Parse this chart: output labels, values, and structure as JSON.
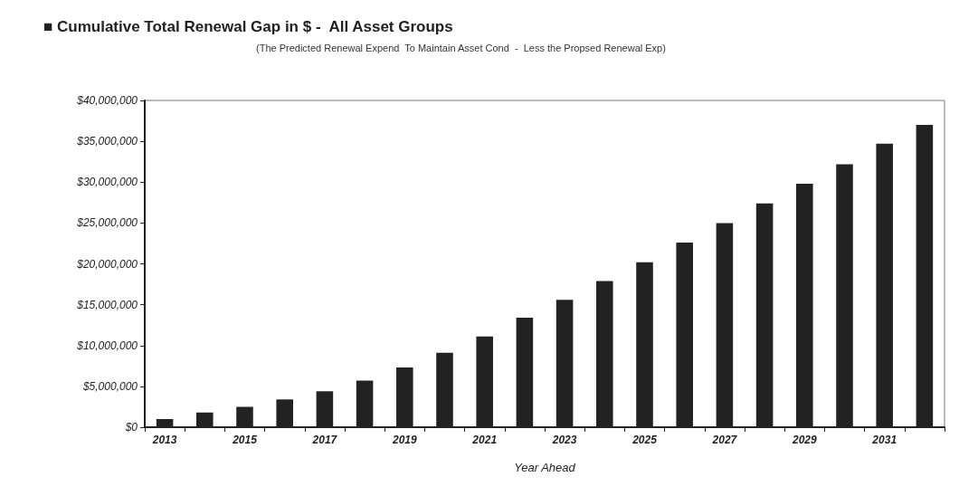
{
  "chart_data": {
    "type": "bar",
    "title": "■ Cumulative Total Renewal Gap in $ -  All Asset Groups",
    "subtitle": "(The Predicted Renewal Expend  To Maintain Asset Cond  -  Less the Propsed Renewal Exp)",
    "xlabel": "Year Ahead",
    "categories": [
      "2013",
      null,
      "2015",
      null,
      "2017",
      null,
      "2019",
      null,
      "2021",
      null,
      "2023",
      null,
      "2025",
      null,
      "2027",
      null,
      "2029",
      null,
      "2031",
      null
    ],
    "values": [
      1000000,
      1800000,
      2500000,
      3400000,
      4400000,
      5700000,
      7300000,
      9100000,
      11100000,
      13400000,
      15600000,
      17900000,
      20200000,
      22600000,
      25000000,
      27400000,
      29800000,
      32200000,
      34700000,
      37000000
    ],
    "color": "#222222",
    "ylim": [
      0,
      40000000
    ],
    "yticks": [
      {
        "value": 0,
        "label": "$0"
      },
      {
        "value": 5000000,
        "label": "$5,000,000"
      },
      {
        "value": 10000000,
        "label": "$10,000,000"
      },
      {
        "value": 15000000,
        "label": "$15,000,000"
      },
      {
        "value": 20000000,
        "label": "$20,000,000"
      },
      {
        "value": 25000000,
        "label": "$25,000,000"
      },
      {
        "value": 30000000,
        "label": "$30,000,000"
      },
      {
        "value": 35000000,
        "label": "$35,000,000"
      },
      {
        "value": 40000000,
        "label": "$40,000,000"
      }
    ],
    "grid": false
  }
}
